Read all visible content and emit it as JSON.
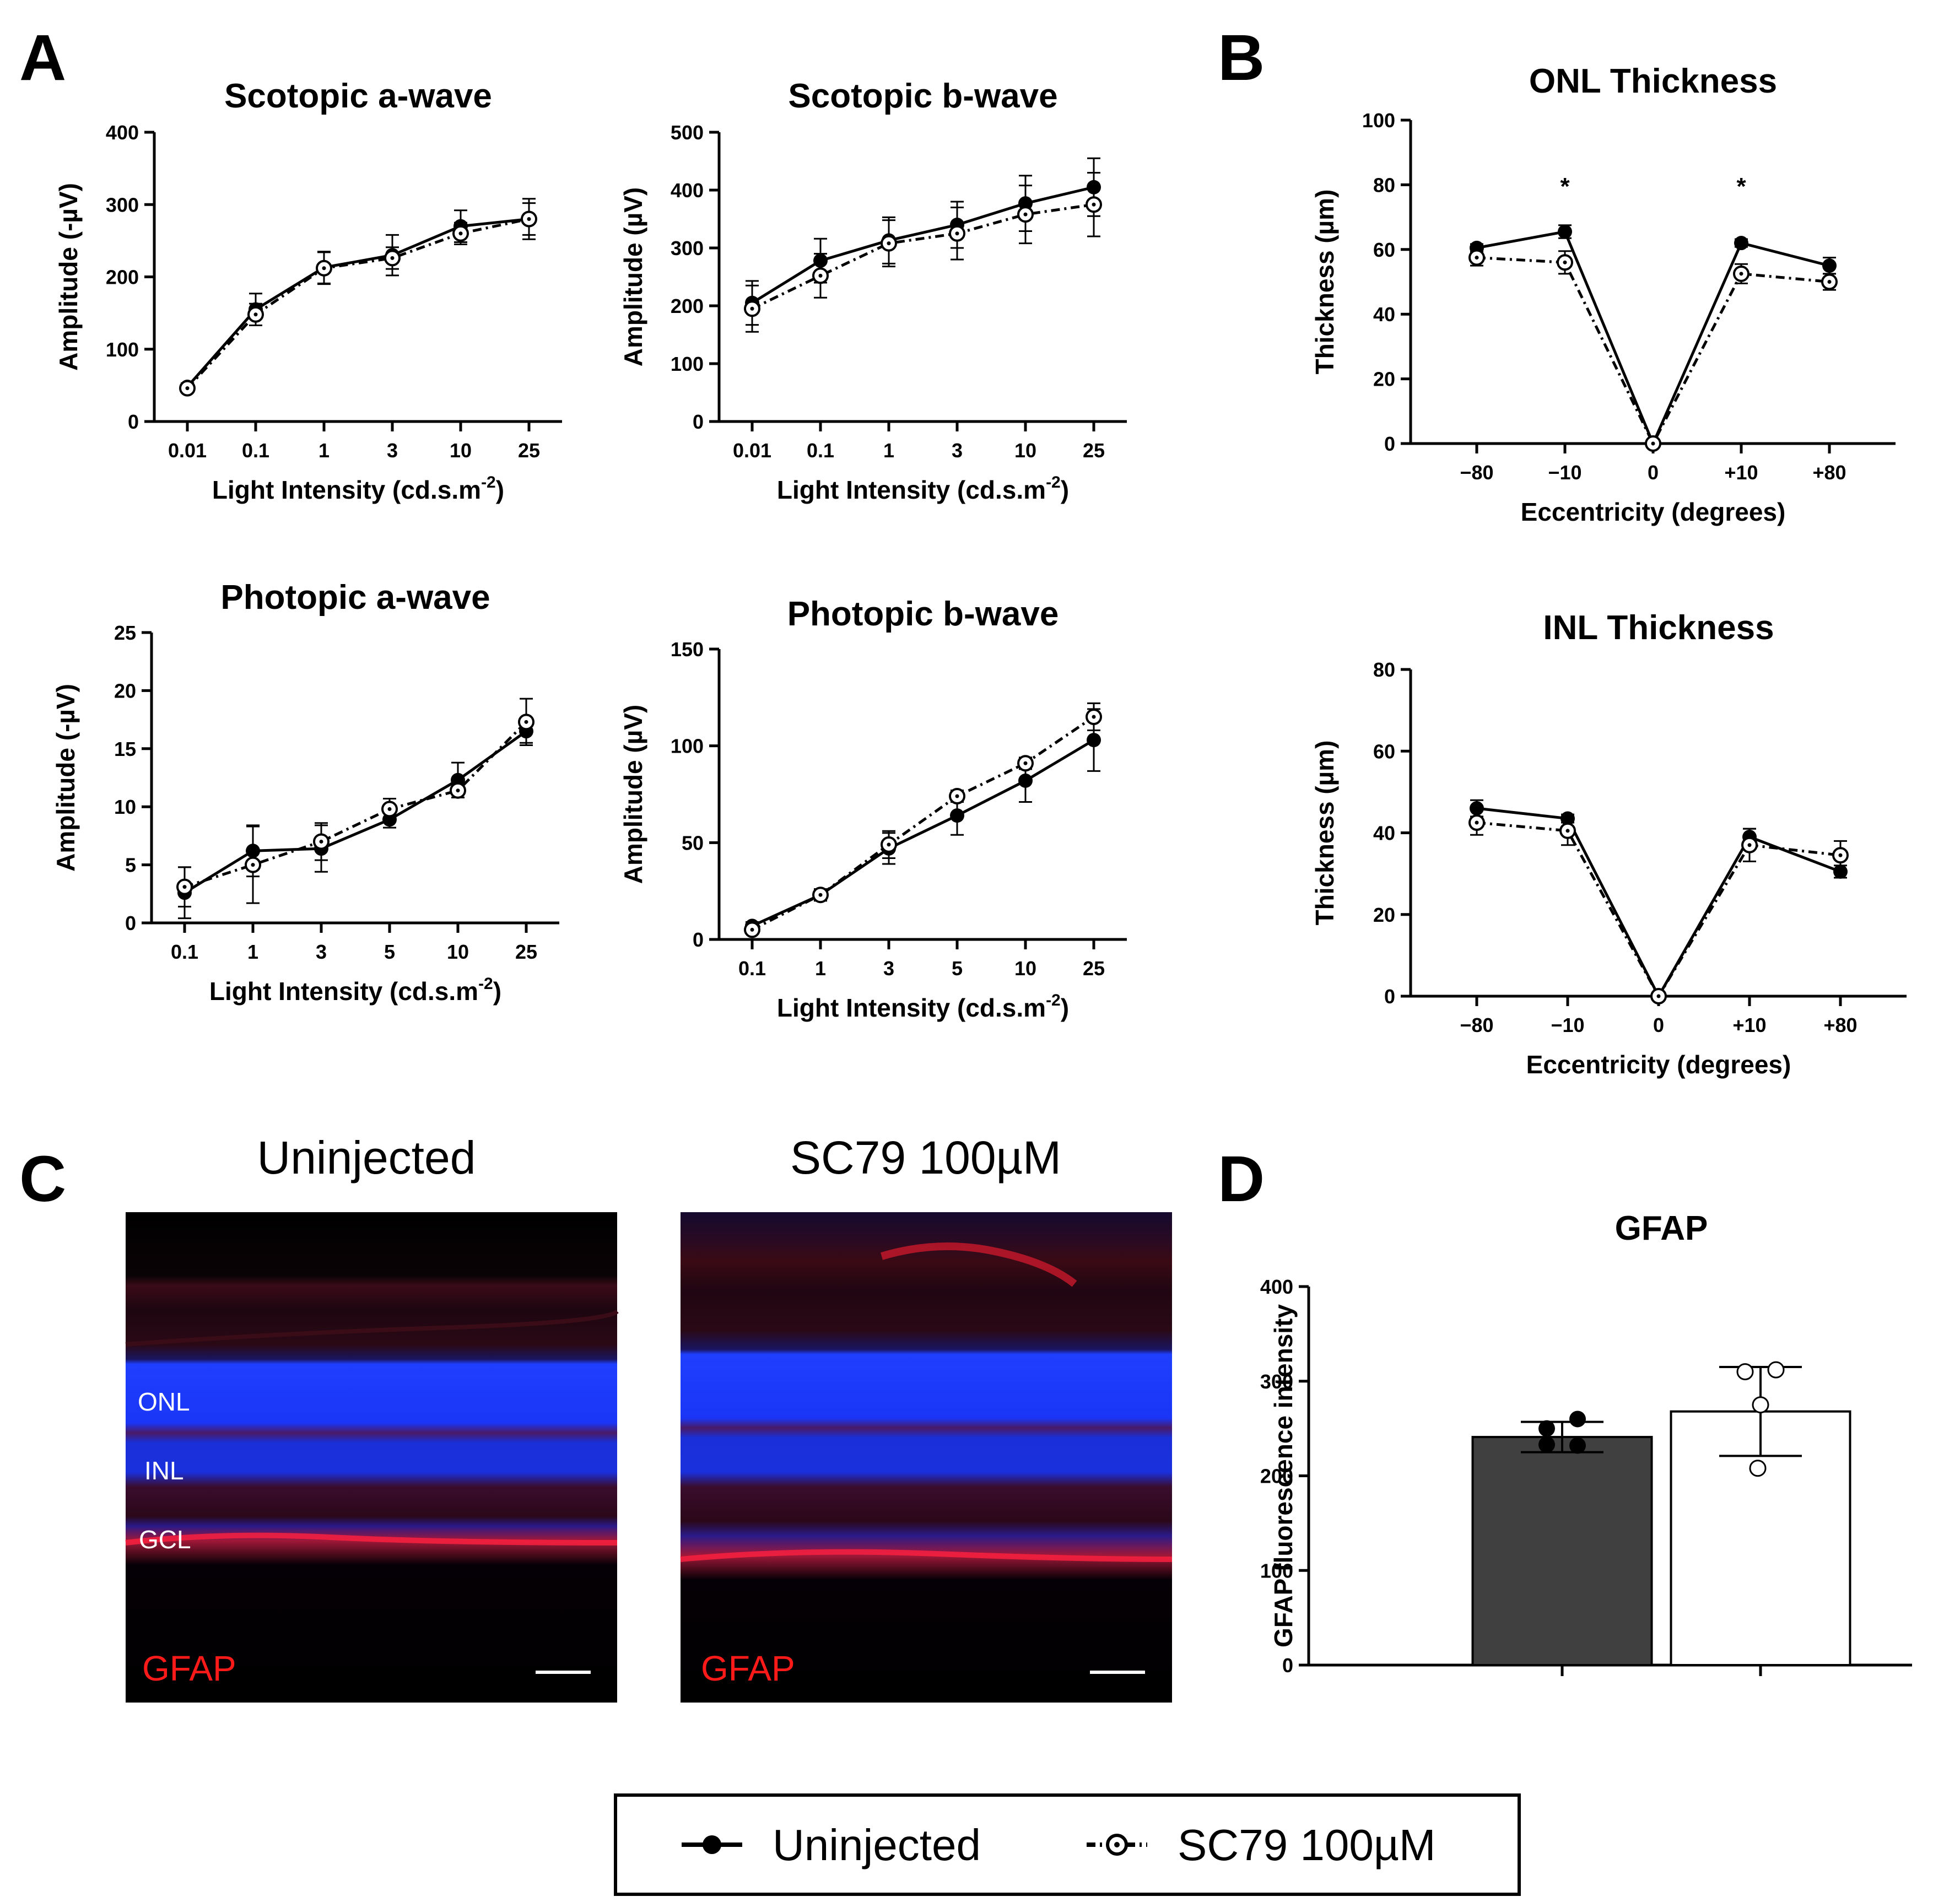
{
  "panels": {
    "a": "A",
    "b": "B",
    "c": "C",
    "d": "D"
  },
  "colors": {
    "filled": "#000000",
    "open_fill": "#ffffff",
    "bar_uninjected": "#404040",
    "bar_sc79": "#ffffff",
    "stain_red": "#ff1a1a",
    "nuclei_blue": "#1a3cff"
  },
  "chart_data": [
    {
      "id": "scotopic_a",
      "type": "line",
      "title": "Scotopic a-wave",
      "xlabel": "Light Intensity (cd.s.m",
      "xlabel_sup": "-2",
      "xlabel_end": ")",
      "ylabel": "Amplitude (-µV)",
      "categories": [
        "0.01",
        "0.1",
        "1",
        "3",
        "10",
        "25"
      ],
      "ylim": [
        0,
        400
      ],
      "yticks": [
        "0",
        "100",
        "200",
        "300",
        "400"
      ],
      "series": [
        {
          "name": "Uninjected",
          "values": [
            48,
            155,
            213,
            230,
            270,
            280
          ],
          "errors": [
            5,
            22,
            22,
            28,
            22,
            22
          ]
        },
        {
          "name": "SC79 100µM",
          "values": [
            46,
            148,
            212,
            226,
            260,
            280
          ],
          "errors": [
            5,
            15,
            22,
            15,
            15,
            28
          ]
        }
      ]
    },
    {
      "id": "scotopic_b",
      "type": "line",
      "title": "Scotopic b-wave",
      "xlabel": "Light Intensity (cd.s.m",
      "xlabel_sup": "-2",
      "xlabel_end": ")",
      "ylabel": "Amplitude (µV)",
      "categories": [
        "0.01",
        "0.1",
        "1",
        "3",
        "10",
        "25"
      ],
      "ylim": [
        0,
        500
      ],
      "yticks": [
        "0",
        "100",
        "200",
        "300",
        "400",
        "500"
      ],
      "series": [
        {
          "name": "Uninjected",
          "values": [
            205,
            278,
            313,
            340,
            377,
            405
          ],
          "errors": [
            38,
            38,
            40,
            40,
            48,
            50
          ]
        },
        {
          "name": "SC79 100µM",
          "values": [
            195,
            252,
            308,
            325,
            358,
            375
          ],
          "errors": [
            40,
            38,
            40,
            45,
            50,
            55
          ]
        }
      ]
    },
    {
      "id": "photopic_a",
      "type": "line",
      "title": "Photopic a-wave",
      "xlabel": "Light Intensity (cd.s.m",
      "xlabel_sup": "-2",
      "xlabel_end": ")",
      "ylabel": "Amplitude (-µV)",
      "categories": [
        "0.1",
        "1",
        "3",
        "5",
        "10",
        "25"
      ],
      "ylim": [
        0,
        25
      ],
      "yticks": [
        "0",
        "5",
        "10",
        "15",
        "20",
        "25"
      ],
      "series": [
        {
          "name": "Uninjected",
          "values": [
            2.6,
            6.2,
            6.4,
            8.9,
            12.3,
            16.5
          ],
          "errors": [
            2.2,
            2.2,
            2.0,
            0.7,
            1.5,
            1.0
          ]
        },
        {
          "name": "SC79 100µM",
          "values": [
            3.1,
            5.0,
            7.0,
            9.8,
            11.4,
            17.3
          ],
          "errors": [
            1.7,
            3.3,
            1.6,
            0.9,
            0.6,
            2.0
          ]
        }
      ]
    },
    {
      "id": "photopic_b",
      "type": "line",
      "title": "Photopic b-wave",
      "xlabel": "Light Intensity (cd.s.m",
      "xlabel_sup": "-2",
      "xlabel_end": ")",
      "ylabel": "Amplitude (µV)",
      "categories": [
        "0.1",
        "1",
        "3",
        "5",
        "10",
        "25"
      ],
      "ylim": [
        0,
        150
      ],
      "yticks": [
        "0",
        "50",
        "100",
        "150"
      ],
      "series": [
        {
          "name": "Uninjected",
          "values": [
            7,
            23,
            47,
            64,
            82,
            103
          ],
          "errors": [
            2,
            3,
            8,
            10,
            11,
            16
          ]
        },
        {
          "name": "SC79 100µM",
          "values": [
            5,
            23,
            49,
            74,
            91,
            115
          ],
          "errors": [
            2,
            3,
            7,
            3,
            3,
            7
          ]
        }
      ]
    },
    {
      "id": "onl_thickness",
      "type": "line",
      "title": "ONL Thickness",
      "xlabel": "Eccentricity (degrees)",
      "ylabel": "Thickness (µm)",
      "categories": [
        "−80",
        "−10",
        "0",
        "+10",
        "+80"
      ],
      "ylim": [
        0,
        100
      ],
      "yticks": [
        "0",
        "20",
        "40",
        "60",
        "80",
        "100"
      ],
      "significance": [
        "",
        "*",
        "",
        "*",
        ""
      ],
      "series": [
        {
          "name": "Uninjected",
          "values": [
            60.5,
            65.5,
            0,
            62,
            55
          ],
          "errors": [
            1.2,
            2.0,
            0,
            1.2,
            2.5
          ]
        },
        {
          "name": "SC79 100µM",
          "values": [
            57.5,
            56,
            0,
            52.5,
            50
          ],
          "errors": [
            2.5,
            3.5,
            0,
            3.0,
            2.5
          ]
        }
      ]
    },
    {
      "id": "inl_thickness",
      "type": "line",
      "title": "INL Thickness",
      "xlabel": "Eccentricity (degrees)",
      "ylabel": "Thickness (µm)",
      "categories": [
        "−80",
        "−10",
        "0",
        "+10",
        "+80"
      ],
      "ylim": [
        0,
        80
      ],
      "yticks": [
        "0",
        "20",
        "40",
        "60",
        "80"
      ],
      "series": [
        {
          "name": "Uninjected",
          "values": [
            46,
            43.5,
            0,
            39,
            30.5
          ],
          "errors": [
            2.0,
            1.0,
            0,
            2.0,
            1.5
          ]
        },
        {
          "name": "SC79 100µM",
          "values": [
            42.5,
            40.5,
            0,
            37,
            34.5
          ],
          "errors": [
            3.0,
            3.5,
            0,
            4.0,
            3.5
          ]
        }
      ]
    },
    {
      "id": "gfap",
      "type": "bar",
      "title": "GFAP",
      "xlabel": "",
      "ylabel": "GFAP fluorescence intensity",
      "categories": [
        "Uninjected",
        "SC79 100µM"
      ],
      "ylim": [
        0,
        400
      ],
      "yticks": [
        "0",
        "100",
        "200",
        "300",
        "400"
      ],
      "values": [
        241,
        268
      ],
      "errors": [
        16,
        47
      ],
      "points": [
        [
          250,
          260,
          233,
          232
        ],
        [
          310,
          312,
          275,
          208
        ]
      ]
    }
  ],
  "images": {
    "uninjected": {
      "title": "Uninjected",
      "labels": [
        "ONL",
        "INL",
        "GCL"
      ],
      "stain": "GFAP"
    },
    "sc79": {
      "title": "SC79 100µM",
      "stain": "GFAP"
    }
  },
  "legend": {
    "items": [
      "Uninjected",
      "SC79 100µM"
    ]
  }
}
